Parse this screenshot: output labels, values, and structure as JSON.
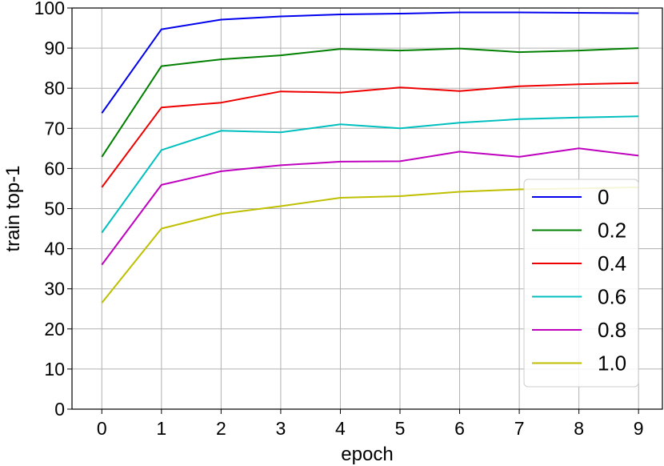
{
  "chart_data": {
    "type": "line",
    "xlabel": "epoch",
    "ylabel": "train top-1",
    "x": [
      0,
      1,
      2,
      3,
      4,
      5,
      6,
      7,
      8,
      9
    ],
    "xlim": [
      -0.5,
      9.4
    ],
    "ylim": [
      0,
      100
    ],
    "xticks": [
      0,
      1,
      2,
      3,
      4,
      5,
      6,
      7,
      8,
      9
    ],
    "yticks": [
      0,
      10,
      20,
      30,
      40,
      50,
      60,
      70,
      80,
      90,
      100
    ],
    "grid": true,
    "legend_position": "lower-right",
    "series": [
      {
        "name": "0",
        "color": "#0000ee",
        "values": [
          73.8,
          94.7,
          97.1,
          97.9,
          98.4,
          98.6,
          98.9,
          98.9,
          98.8,
          98.7
        ]
      },
      {
        "name": "0.2",
        "color": "#008000",
        "values": [
          62.9,
          85.5,
          87.2,
          88.2,
          89.8,
          89.4,
          89.9,
          89.0,
          89.4,
          90.0
        ]
      },
      {
        "name": "0.4",
        "color": "#ee0000",
        "values": [
          55.3,
          75.2,
          76.4,
          79.2,
          78.9,
          80.2,
          79.3,
          80.5,
          81.0,
          81.3
        ]
      },
      {
        "name": "0.6",
        "color": "#00bfbf",
        "values": [
          44.0,
          64.6,
          69.4,
          69.0,
          71.0,
          70.0,
          71.4,
          72.3,
          72.7,
          73.0
        ]
      },
      {
        "name": "0.8",
        "color": "#bf00bf",
        "values": [
          36.0,
          55.9,
          59.3,
          60.8,
          61.7,
          61.8,
          64.2,
          62.9,
          65.0,
          63.2
        ]
      },
      {
        "name": "1.0",
        "color": "#bfbf00",
        "values": [
          26.5,
          45.0,
          48.7,
          50.6,
          52.7,
          53.1,
          54.2,
          54.8,
          55.0,
          55.3
        ]
      }
    ]
  }
}
